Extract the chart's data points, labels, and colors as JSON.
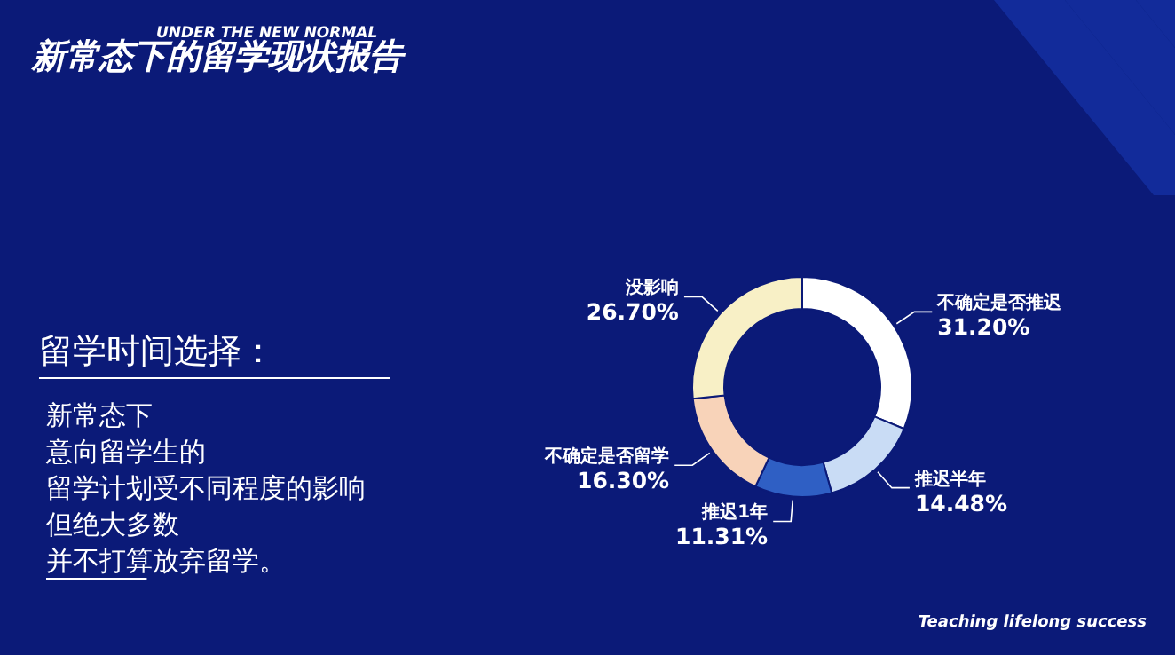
{
  "chart_data": {
    "type": "donut",
    "title": "新常态下的留学现状报告",
    "subtitle": "UNDER THE NEW NORMAL",
    "categories": [
      "不确定是否推迟",
      "推迟半年",
      "推迟1年",
      "不确定是否留学",
      "没影响"
    ],
    "values": [
      31.2,
      14.48,
      11.31,
      16.3,
      26.7
    ],
    "value_labels": [
      "31.20%",
      "14.48%",
      "11.31%",
      "16.30%",
      "26.70%"
    ],
    "colors": [
      "#ffffff",
      "#c9dcf5",
      "#2f5fc4",
      "#f8d3b9",
      "#f8f0c6"
    ],
    "annotations": [
      "留学时间选择：",
      "新常态下",
      "意向留学生的",
      "留学计划受不同程度的影响",
      "但绝大多数",
      "并不打算放弃留学。",
      "Teaching lifelong success"
    ]
  }
}
